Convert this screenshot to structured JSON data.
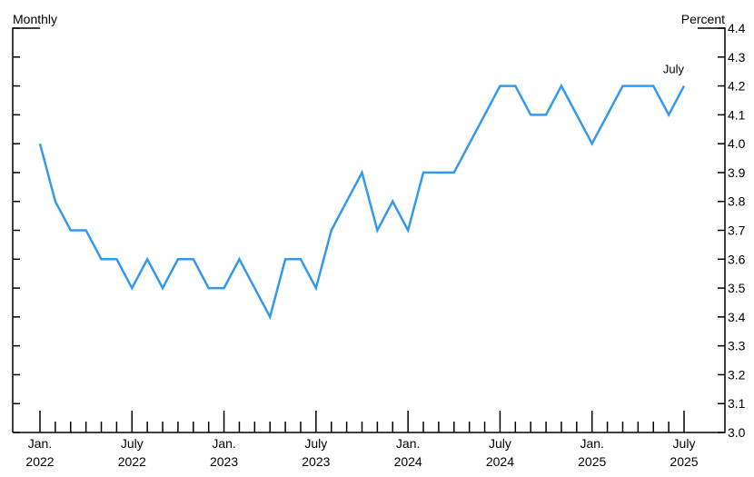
{
  "chart_data": {
    "type": "line",
    "left_label": "Monthly",
    "right_label": "Percent",
    "annotation": "July",
    "categories": [
      "Jan.\n2022",
      null,
      null,
      null,
      null,
      null,
      "July\n2022",
      null,
      null,
      null,
      null,
      null,
      "Jan.\n2023",
      null,
      null,
      null,
      null,
      null,
      "July\n2023",
      null,
      null,
      null,
      null,
      null,
      "Jan.\n2024",
      null,
      null,
      null,
      null,
      null,
      "July\n2024",
      null,
      null,
      null,
      null,
      null,
      "Jan.\n2025",
      null,
      null,
      null,
      null,
      null,
      "July\n2025"
    ],
    "values": [
      4.0,
      3.8,
      3.7,
      3.7,
      3.6,
      3.6,
      3.5,
      3.6,
      3.5,
      3.6,
      3.6,
      3.5,
      3.5,
      3.6,
      3.5,
      3.4,
      3.6,
      3.6,
      3.5,
      3.7,
      3.8,
      3.9,
      3.7,
      3.8,
      3.7,
      3.9,
      3.9,
      3.9,
      4.0,
      4.1,
      4.2,
      4.2,
      4.1,
      4.1,
      4.2,
      4.1,
      4.0,
      4.1,
      4.2,
      4.2,
      4.2,
      4.1,
      4.2
    ],
    "color": "#3399ee",
    "ylim": [
      3.0,
      4.4
    ],
    "yticks": [
      {
        "value": 3.0,
        "label": "3.0"
      },
      3.1,
      3.2,
      3.3,
      3.4,
      3.5,
      3.6,
      3.7,
      3.8,
      3.9,
      {
        "value": 4.0,
        "label": "4.0"
      },
      4.1,
      4.2,
      4.3,
      4.4
    ]
  }
}
